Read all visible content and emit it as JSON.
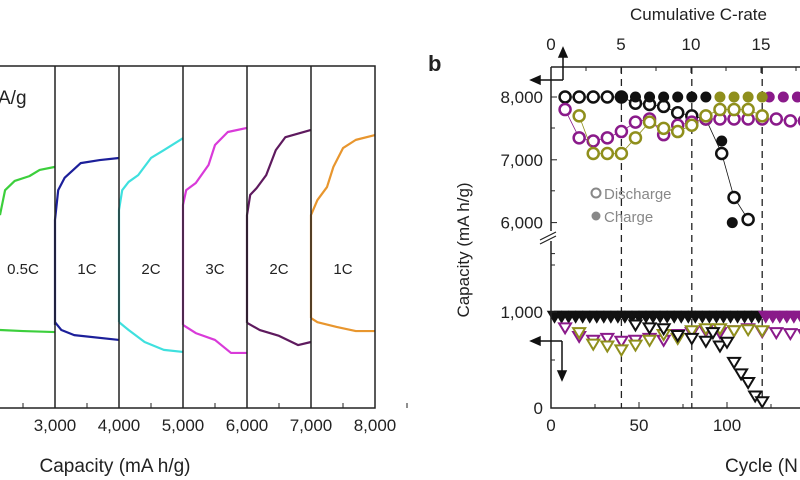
{
  "chart_data": [
    {
      "type": "line",
      "panel_label": "",
      "partial_text": "A/g",
      "xlabel": "Capacity (mA h/g)",
      "xticks": [
        "00",
        "3,000",
        "4,000",
        "5,000",
        "6,000",
        "7,000",
        "8,000"
      ],
      "xlim": [
        2000,
        8000
      ],
      "segment_labels": [
        "0.5C",
        "1C",
        "2C",
        "3C",
        "2C",
        "1C"
      ],
      "segments": [
        {
          "label": "0.5C",
          "color": "#3ccf3c",
          "start": 2000,
          "end": 3000,
          "charge": [
            [
              2140,
              56.4
            ],
            [
              2220,
              63.7
            ],
            [
              2370,
              66.4
            ],
            [
              2600,
              67.8
            ],
            [
              2760,
              69.6
            ],
            [
              3000,
              70.5
            ]
          ],
          "discharge": [
            [
              2140,
              22.8
            ],
            [
              2500,
              22.5
            ],
            [
              3000,
              22.2
            ]
          ]
        },
        {
          "label": "1C",
          "color": "#1c1f9a",
          "start": 3000,
          "end": 4000,
          "charge": [
            [
              3000,
              24.3
            ],
            [
              3000,
              55
            ],
            [
              3050,
              63.7
            ],
            [
              3150,
              67.3
            ],
            [
              3400,
              71.6
            ],
            [
              3700,
              72.5
            ],
            [
              4000,
              73.1
            ]
          ],
          "discharge": [
            [
              3000,
              25.1
            ],
            [
              3100,
              22.8
            ],
            [
              3300,
              21.3
            ],
            [
              4000,
              19.9
            ]
          ]
        },
        {
          "label": "2C",
          "color": "#3fe0de",
          "start": 4000,
          "end": 5000,
          "charge": [
            [
              4000,
              25.1
            ],
            [
              4000,
              57.9
            ],
            [
              4050,
              63.7
            ],
            [
              4150,
              66.1
            ],
            [
              4300,
              68.1
            ],
            [
              4500,
              73.1
            ],
            [
              4700,
              75.4
            ],
            [
              5000,
              78.9
            ]
          ],
          "discharge": [
            [
              4000,
              25.1
            ],
            [
              4150,
              22.8
            ],
            [
              4400,
              19.3
            ],
            [
              4700,
              17
            ],
            [
              5000,
              16.4
            ]
          ]
        },
        {
          "label": "3C",
          "color": "#d93ad9",
          "start": 5000,
          "end": 6000,
          "charge": [
            [
              5000,
              24.3
            ],
            [
              5000,
              59.4
            ],
            [
              5050,
              63.7
            ],
            [
              5200,
              65.8
            ],
            [
              5400,
              71.1
            ],
            [
              5500,
              76.9
            ],
            [
              5700,
              80.7
            ],
            [
              6000,
              81.9
            ]
          ],
          "discharge": [
            [
              5000,
              24.3
            ],
            [
              5200,
              21.9
            ],
            [
              5500,
              19.9
            ],
            [
              5750,
              16.1
            ],
            [
              6000,
              16.1
            ]
          ]
        },
        {
          "label": "2C",
          "color": "#5e1a5e",
          "start": 6000,
          "end": 7000,
          "charge": [
            [
              6000,
              24.9
            ],
            [
              6000,
              56.4
            ],
            [
              6050,
              62.3
            ],
            [
              6150,
              64.3
            ],
            [
              6300,
              68.1
            ],
            [
              6450,
              75.4
            ],
            [
              6600,
              79.2
            ],
            [
              7000,
              81.3
            ]
          ],
          "discharge": [
            [
              6000,
              24.9
            ],
            [
              6200,
              22.8
            ],
            [
              6500,
              21.1
            ],
            [
              6800,
              18.4
            ],
            [
              7000,
              19.3
            ]
          ]
        },
        {
          "label": "1C",
          "color": "#e8962e",
          "start": 7000,
          "end": 8000,
          "charge": [
            [
              7000,
              26.3
            ],
            [
              7000,
              56.4
            ],
            [
              7100,
              60.8
            ],
            [
              7250,
              64.6
            ],
            [
              7350,
              70.5
            ],
            [
              7500,
              76
            ],
            [
              7700,
              78.4
            ],
            [
              8000,
              79.8
            ]
          ],
          "discharge": [
            [
              7000,
              26.3
            ],
            [
              7100,
              25.1
            ],
            [
              7400,
              23.7
            ],
            [
              7700,
              22.5
            ],
            [
              8000,
              22.5
            ]
          ]
        }
      ]
    },
    {
      "type": "scatter",
      "panel_label": "b",
      "xlabel": "Cycle (N",
      "top_xlabel": "Cumulative C-rate",
      "ylabel": "Capacity (mA h/g)",
      "xticks": [
        "0",
        "50",
        "100"
      ],
      "top_xticks": [
        "0",
        "5",
        "10",
        "15"
      ],
      "yticks_upper": [
        "8,000",
        "7,000",
        "6,000"
      ],
      "yticks_lower": [
        "1,000",
        "0"
      ],
      "dashed_lines_cycle": [
        40,
        80,
        120
      ],
      "legend": {
        "position": "center-left",
        "items": [
          "Discharge",
          "Charge"
        ]
      },
      "colors": {
        "black": "#111111",
        "purple": "#8a1a8a",
        "olive": "#8f8f1c"
      },
      "upper_series": [
        {
          "color": "black",
          "fill": false,
          "x": [
            8,
            16,
            24,
            32,
            40,
            48,
            56,
            64,
            72,
            80,
            88,
            97,
            104,
            112
          ],
          "y": [
            8000,
            8000,
            8000,
            8000,
            8000,
            7900,
            7880,
            7850,
            7750,
            7700,
            7650,
            7100,
            6400,
            6050
          ]
        },
        {
          "color": "black",
          "fill": true,
          "x": [
            40,
            48,
            56,
            64,
            72,
            80,
            88,
            97,
            103
          ],
          "y": [
            8000,
            8000,
            8000,
            8000,
            8000,
            8000,
            8000,
            7300,
            6000
          ]
        },
        {
          "color": "purple",
          "fill": false,
          "x": [
            8,
            16,
            24,
            32,
            40,
            48,
            56,
            64,
            72,
            80,
            88,
            96,
            104,
            112,
            120,
            128,
            136,
            144
          ],
          "y": [
            7800,
            7350,
            7300,
            7350,
            7450,
            7600,
            7650,
            7400,
            7550,
            7600,
            7650,
            7650,
            7650,
            7650,
            7650,
            7650,
            7620,
            7620
          ]
        },
        {
          "color": "purple",
          "fill": true,
          "x": [
            124,
            132,
            140,
            148
          ],
          "y": [
            8000,
            8000,
            8000,
            8000
          ]
        },
        {
          "color": "olive",
          "fill": false,
          "x": [
            16,
            24,
            32,
            40,
            48,
            56,
            64,
            72,
            80,
            88,
            96,
            104,
            112,
            120
          ],
          "y": [
            7700,
            7100,
            7100,
            7100,
            7350,
            7600,
            7500,
            7450,
            7550,
            7700,
            7800,
            7800,
            7800,
            7700
          ]
        },
        {
          "color": "olive",
          "fill": true,
          "x": [
            96,
            104,
            112,
            120
          ],
          "y": [
            8000,
            8000,
            8000,
            8000
          ]
        }
      ],
      "lower_series": [
        {
          "color": "black",
          "fill": true,
          "x": [
            2,
            6,
            10,
            14,
            18,
            22,
            26,
            30,
            34,
            38,
            42,
            46,
            50,
            54,
            58,
            62,
            66,
            70,
            74,
            78,
            82,
            86,
            90,
            94,
            98,
            102,
            106,
            110,
            114,
            118
          ],
          "y": [
            950,
            950,
            950,
            950,
            950,
            950,
            950,
            950,
            950,
            950,
            950,
            950,
            950,
            950,
            950,
            950,
            950,
            950,
            950,
            950,
            950,
            950,
            950,
            950,
            950,
            950,
            950,
            950,
            950,
            950
          ]
        },
        {
          "color": "purple",
          "fill": true,
          "x": [
            122,
            126,
            130,
            134,
            138,
            142,
            146
          ],
          "y": [
            950,
            950,
            950,
            950,
            950,
            950,
            950
          ]
        },
        {
          "color": "purple",
          "fill": false,
          "x": [
            8,
            16,
            24,
            32,
            40,
            48,
            56,
            64,
            72,
            80,
            88,
            96,
            104,
            112,
            120,
            128,
            136,
            144
          ],
          "y": [
            830,
            740,
            700,
            720,
            690,
            700,
            720,
            700,
            760,
            780,
            800,
            780,
            800,
            820,
            790,
            780,
            770,
            760
          ]
        },
        {
          "color": "olive",
          "fill": false,
          "x": [
            16,
            24,
            32,
            40,
            48,
            56,
            64,
            72,
            80,
            88,
            96,
            104,
            112,
            120
          ],
          "y": [
            780,
            660,
            640,
            600,
            650,
            700,
            760,
            720,
            800,
            820,
            820,
            800,
            810,
            800
          ]
        },
        {
          "color": "black",
          "fill": false,
          "x": [
            48,
            56,
            64,
            72,
            80,
            88,
            92,
            96,
            100,
            104,
            108,
            112,
            116,
            120
          ],
          "y": [
            860,
            830,
            820,
            750,
            720,
            690,
            780,
            640,
            680,
            470,
            350,
            260,
            120,
            60
          ]
        }
      ]
    }
  ]
}
